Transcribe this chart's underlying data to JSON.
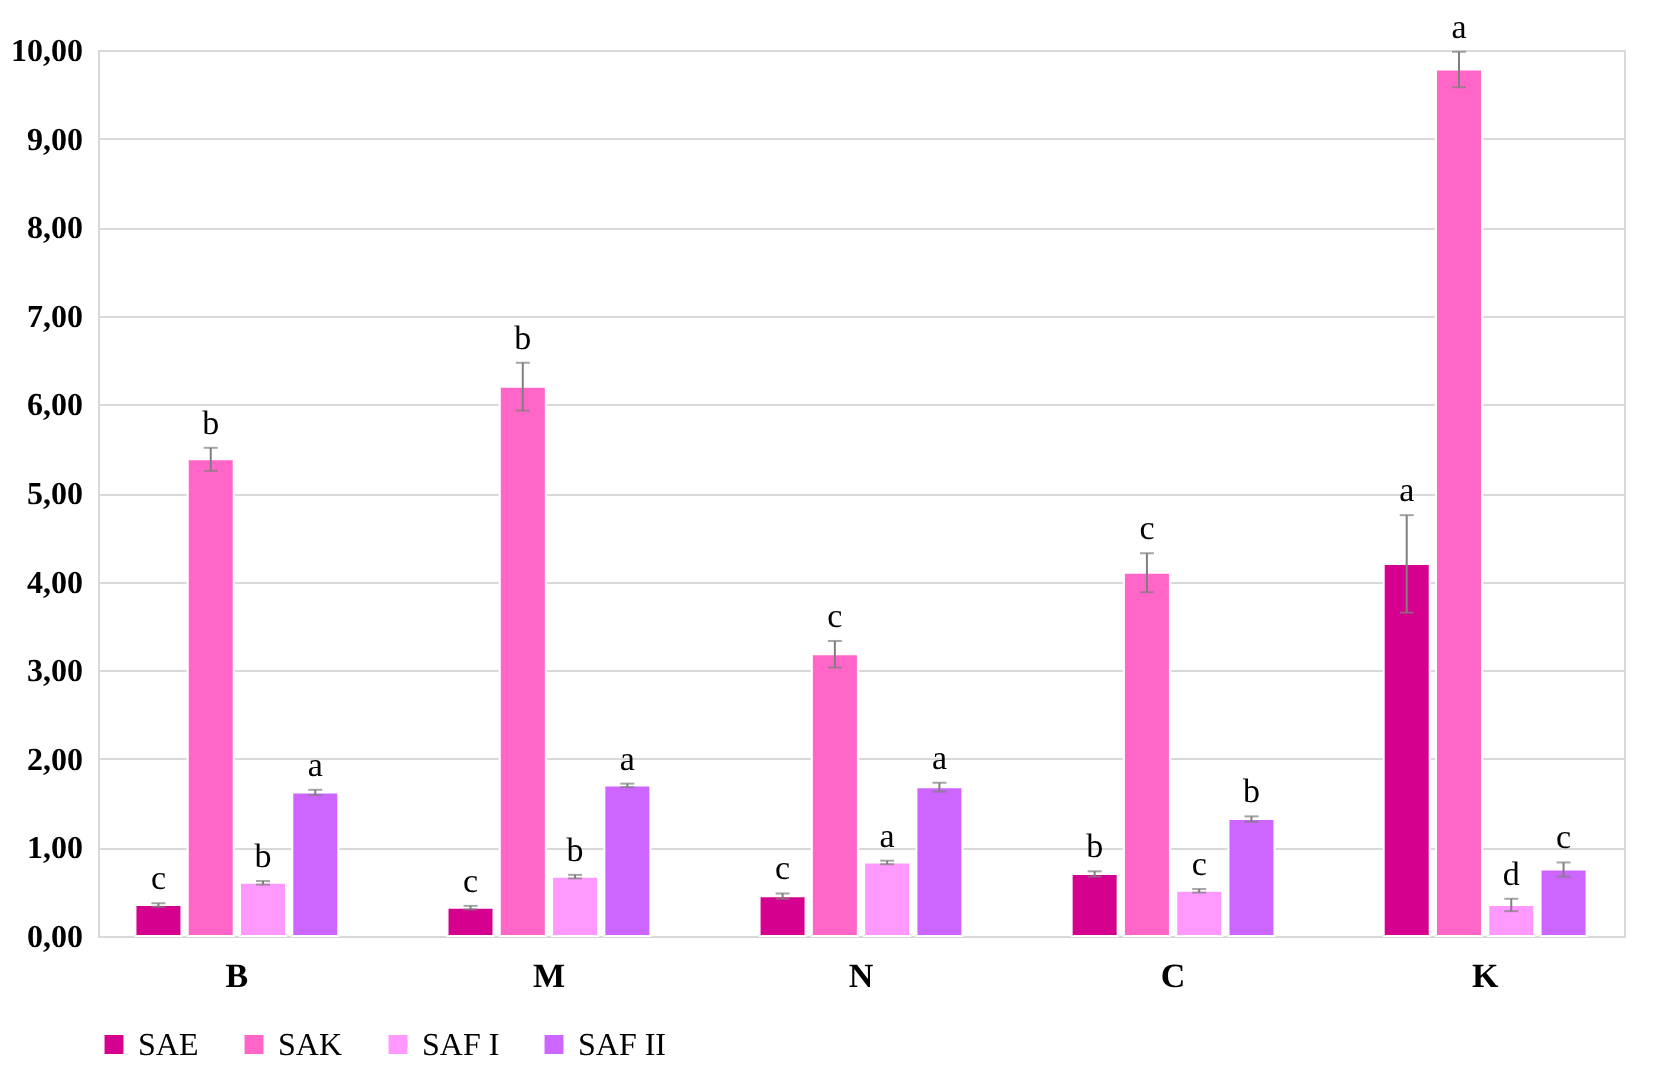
{
  "chart_data": {
    "type": "bar",
    "categories": [
      "B",
      "M",
      "N",
      "C",
      "K"
    ],
    "series": [
      {
        "name": "SAE",
        "color": "#d6008f",
        "values": [
          0.35,
          0.32,
          0.45,
          0.7,
          4.2
        ],
        "errors": [
          0.02,
          0.02,
          0.03,
          0.03,
          0.55
        ],
        "value_labels": [
          "c",
          "c",
          "c",
          "b",
          "a"
        ]
      },
      {
        "name": "SAK",
        "color": "#ff66c7",
        "values": [
          5.38,
          6.2,
          3.18,
          4.1,
          9.78
        ],
        "errors": [
          0.13,
          0.27,
          0.15,
          0.22,
          0.2
        ],
        "value_labels": [
          "b",
          "b",
          "c",
          "c",
          "a"
        ]
      },
      {
        "name": "SAF I",
        "color": "#ff99ff",
        "values": [
          0.6,
          0.67,
          0.83,
          0.51,
          0.35
        ],
        "errors": [
          0.02,
          0.02,
          0.02,
          0.02,
          0.07
        ],
        "value_labels": [
          "b",
          "b",
          "a",
          "c",
          "d"
        ]
      },
      {
        "name": "SAF II",
        "color": "#cc66ff",
        "values": [
          1.62,
          1.7,
          1.68,
          1.32,
          0.75
        ],
        "errors": [
          0.03,
          0.02,
          0.05,
          0.03,
          0.08
        ],
        "value_labels": [
          "a",
          "a",
          "a",
          "b",
          "c"
        ]
      }
    ],
    "ylim": [
      0,
      10
    ],
    "yticks": [
      {
        "value": 0,
        "label": "0,00"
      },
      {
        "value": 1,
        "label": "1,00"
      },
      {
        "value": 2,
        "label": "2,00"
      },
      {
        "value": 3,
        "label": "3,00"
      },
      {
        "value": 4,
        "label": "4,00"
      },
      {
        "value": 5,
        "label": "5,00"
      },
      {
        "value": 6,
        "label": "6,00"
      },
      {
        "value": 7,
        "label": "7,00"
      },
      {
        "value": 8,
        "label": "8,00"
      },
      {
        "value": 9,
        "label": "9,00"
      },
      {
        "value": 10,
        "label": "10,00"
      }
    ],
    "grid": "y",
    "legend": "bottom"
  }
}
